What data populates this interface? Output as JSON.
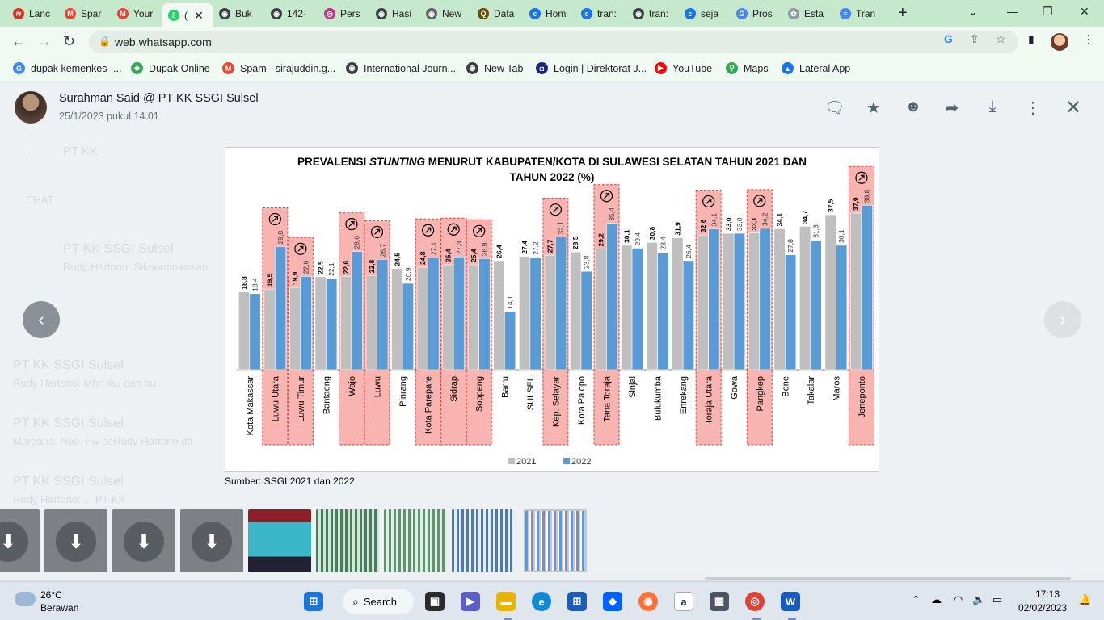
{
  "browser": {
    "tabs": [
      {
        "label": "Lanc",
        "color": "#d93025",
        "glyph": "≋"
      },
      {
        "label": "Spar",
        "color": "#ea4335",
        "glyph": "M"
      },
      {
        "label": "Your",
        "color": "#ea4335",
        "glyph": "M"
      },
      {
        "label": "(",
        "color": "#25d366",
        "glyph": "2",
        "active": true
      },
      {
        "label": "Buk",
        "color": "#3c4043",
        "glyph": "◉"
      },
      {
        "label": "142-",
        "color": "#3c4043",
        "glyph": "◉"
      },
      {
        "label": "Pers",
        "color": "#c13584",
        "glyph": "◎"
      },
      {
        "label": "Hasi",
        "color": "#3c4043",
        "glyph": "◉"
      },
      {
        "label": "New",
        "color": "#5f6368",
        "glyph": "◉"
      },
      {
        "label": "Data",
        "color": "#6b4c00",
        "glyph": "Q"
      },
      {
        "label": "Hom",
        "color": "#1a73e8",
        "glyph": "c"
      },
      {
        "label": "tran:",
        "color": "#1a73e8",
        "glyph": "c"
      },
      {
        "label": "tran:",
        "color": "#3c4043",
        "glyph": "◉"
      },
      {
        "label": "seja",
        "color": "#1a73e8",
        "glyph": "c"
      },
      {
        "label": "Pros",
        "color": "#4285f4",
        "glyph": "G"
      },
      {
        "label": "Esta",
        "color": "#8e9aa5",
        "glyph": "✿"
      },
      {
        "label": "Tran",
        "color": "#4285f4",
        "glyph": "≡"
      }
    ],
    "url": "web.whatsapp.com",
    "bookmarks": [
      {
        "label": "dupak kemenkes -...",
        "color": "#4285f4",
        "glyph": "G"
      },
      {
        "label": "Dupak Online",
        "color": "#34a853",
        "glyph": "◆"
      },
      {
        "label": "Spam - sirajuddin.g...",
        "color": "#ea4335",
        "glyph": "M"
      },
      {
        "label": "International Journ...",
        "color": "#3c4043",
        "glyph": "◉"
      },
      {
        "label": "New Tab",
        "color": "#3c4043",
        "glyph": "◉"
      },
      {
        "label": "Login | Direktorat J...",
        "color": "#1a237e",
        "glyph": "◘"
      },
      {
        "label": "YouTube",
        "color": "#ff0000",
        "glyph": "▶"
      },
      {
        "label": "Maps",
        "color": "#34a853",
        "glyph": "⚲"
      },
      {
        "label": "Lateral App",
        "color": "#1a73e8",
        "glyph": "▲"
      }
    ]
  },
  "viewer": {
    "sender": "Surahman Said @ PT KK SSGI Sulsel",
    "timestamp": "25/1/2023 pukul 14.01",
    "source_caption": "Sumber: SSGI 2021 dan 2022"
  },
  "background_chat": {
    "search_text": "PT KK",
    "chat_heading": "CHAT",
    "items": [
      {
        "title": "PT KK SSGI Sulsel",
        "preview": "Rudy Hartono: Sikoordinasikan"
      },
      {
        "title": "PT KK SSGI Sulsel",
        "preview": "Rudy Hartono: Mhn ibu dan bu"
      },
      {
        "title": "PT KK SSGI Sulsel",
        "preview": "Margana: Noo. Fw seRudy Hartono da"
      },
      {
        "title": "PT KK SSGI Sulsel",
        "preview": "Rudy Hartono: ... PT KK"
      }
    ]
  },
  "chart_data": {
    "type": "bar",
    "title_line1_prefix": "PREVALENSI ",
    "title_italic": "STUNTING",
    "title_line1_suffix": " MENURUT KABUPATEN/KOTA DI SULAWESI SELATAN TAHUN 2021 DAN",
    "title_line2": "TAHUN 2022 (%)",
    "categories": [
      "Kota Makassar",
      "Luwu Utara",
      "Luwu Timur",
      "Bantaeng",
      "Wajo",
      "Luwu",
      "Pinrang",
      "Kota Parepare",
      "Sidrap",
      "Soppeng",
      "Barru",
      "SULSEL",
      "Kep. Selayar",
      "Kota Palopo",
      "Tana Toraja",
      "Sinjai",
      "Bulukumba",
      "Enrekang",
      "Toraja Utara",
      "Gowa",
      "Pangkep",
      "Bone",
      "Takalar",
      "Maros",
      "Jeneponto"
    ],
    "series": [
      {
        "name": "2021",
        "color": "#bfbfbf",
        "values": [
          18.8,
          19.5,
          19.9,
          22.5,
          22.6,
          22.8,
          24.5,
          24.8,
          25.4,
          25.4,
          26.4,
          27.4,
          27.7,
          28.5,
          29.2,
          30.1,
          30.8,
          31.9,
          32.6,
          33.0,
          33.1,
          34.1,
          34.7,
          37.5,
          37.9
        ]
      },
      {
        "name": "2022",
        "color": "#5b9bd5",
        "values": [
          18.4,
          29.8,
          22.6,
          22.1,
          28.6,
          26.7,
          20.9,
          27.1,
          27.3,
          26.9,
          14.1,
          27.2,
          32.1,
          23.8,
          35.4,
          29.4,
          28.4,
          26.4,
          34.1,
          33.0,
          34.2,
          27.8,
          31.3,
          30.1,
          39.8
        ]
      }
    ],
    "labels_2021": [
      "18,8",
      "19,5",
      "19,9",
      "22,5",
      "22,6",
      "22,8",
      "24,5",
      "24,8",
      "25,4",
      "25,4",
      "26,4",
      "27,4",
      "27,7",
      "28,5",
      "29,2",
      "30,1",
      "30,8",
      "31,9",
      "32,6",
      "33,0",
      "33,1",
      "34,1",
      "34,7",
      "37,5",
      "37,9"
    ],
    "labels_2022": [
      "18,4",
      "29,8",
      "22,6",
      "22,1",
      "28,6",
      "26,7",
      "20,9",
      "27,1",
      "27,3",
      "26,9",
      "14,1",
      "27,2",
      "32,1",
      "23,8",
      "35,4",
      "29,4",
      "28,4",
      "26,4",
      "34,1",
      "33,0",
      "34,2",
      "27,8",
      "31,3",
      "30,1",
      "39,8"
    ],
    "highlighted": [
      "Luwu Utara",
      "Luwu Timur",
      "Wajo",
      "Luwu",
      "Kota Parepare",
      "Sidrap",
      "Soppeng",
      "Kep. Selayar",
      "Tana Toraja",
      "Toraja Utara",
      "Pangkep",
      "Jeneponto"
    ],
    "highlight_color": "#f8b4b0",
    "legend": [
      "2021",
      "2022"
    ],
    "legend_position": "bottom",
    "ylim": [
      0,
      42
    ]
  },
  "thumbnails": {
    "download_glyph": "⬇"
  },
  "taskbar": {
    "weather_temp": "26°C",
    "weather_desc": "Berawan",
    "search_label": "Search",
    "time": "17:13",
    "date": "02/02/2023"
  }
}
